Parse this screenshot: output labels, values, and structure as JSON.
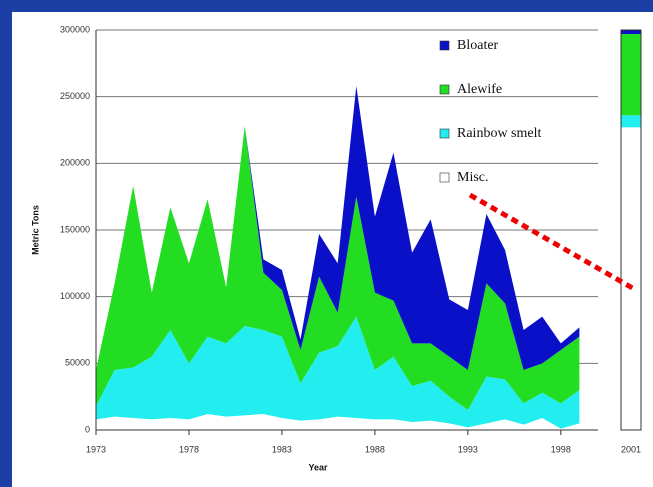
{
  "chart_data": {
    "type": "stacked-area",
    "x_label": "Year",
    "y_label": "Metric Tons",
    "x": [
      1973,
      1974,
      1975,
      1976,
      1977,
      1978,
      1979,
      1980,
      1981,
      1982,
      1983,
      1984,
      1985,
      1986,
      1987,
      1988,
      1989,
      1990,
      1991,
      1992,
      1993,
      1994,
      1995,
      1996,
      1997,
      1998,
      1999
    ],
    "series": [
      {
        "name": "Bloater",
        "color": "#0a10c8",
        "values": [
          0,
          0,
          0,
          0,
          0,
          0,
          0,
          0,
          0,
          10000,
          15000,
          8000,
          32000,
          37000,
          83000,
          57000,
          111000,
          68000,
          93000,
          43000,
          45000,
          52000,
          40000,
          30000,
          35000,
          5000,
          7000
        ]
      },
      {
        "name": "Alewife",
        "color": "#22dd22",
        "values": [
          27000,
          65000,
          136000,
          48000,
          92000,
          75000,
          103000,
          42000,
          150000,
          43000,
          35000,
          25000,
          57000,
          25000,
          90000,
          58000,
          42000,
          32000,
          28000,
          30000,
          30000,
          70000,
          57000,
          25000,
          22000,
          40000,
          40000
        ]
      },
      {
        "name": "Rainbow smelt",
        "color": "#22eef0",
        "values": [
          10000,
          35000,
          38000,
          47000,
          66000,
          42000,
          58000,
          55000,
          67000,
          63000,
          61000,
          28000,
          50000,
          53000,
          76000,
          37000,
          47000,
          27000,
          30000,
          20000,
          13000,
          35000,
          30000,
          16000,
          19000,
          19000,
          25000
        ]
      },
      {
        "name": "Misc.",
        "color": "#ffffff",
        "values": [
          8000,
          10000,
          9000,
          8000,
          9000,
          8000,
          12000,
          10000,
          11000,
          12000,
          9000,
          7000,
          8000,
          10000,
          9000,
          8000,
          8000,
          6000,
          7000,
          5000,
          2000,
          5000,
          8000,
          4000,
          9000,
          1000,
          5000
        ]
      }
    ],
    "xlim": [
      1973,
      2000
    ],
    "xticks": [
      1973,
      1978,
      1983,
      1988,
      1993,
      1998
    ],
    "ylim": [
      0,
      300000
    ],
    "yticks": [
      0,
      50000,
      100000,
      150000,
      200000,
      250000,
      300000
    ],
    "grid": true,
    "legend": "upper right",
    "inset": {
      "category": "2001",
      "values": [
        3000,
        61000,
        9000,
        227000
      ]
    }
  }
}
